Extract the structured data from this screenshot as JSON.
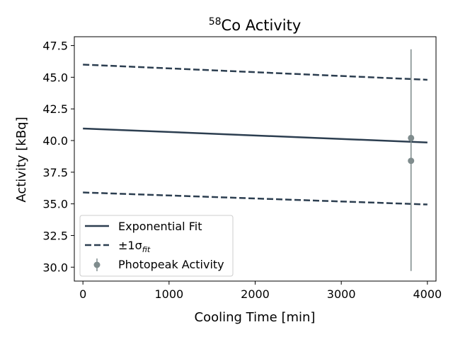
{
  "chart_data": {
    "type": "line",
    "title": "Co Activity",
    "title_superscript": "58",
    "xlabel": "Cooling Time [min]",
    "ylabel": "Activity [kBq]",
    "xlim": [
      -100,
      4100
    ],
    "ylim": [
      28.9,
      48.2
    ],
    "xticks": [
      0,
      1000,
      2000,
      3000,
      4000
    ],
    "yticks": [
      30.0,
      32.5,
      35.0,
      37.5,
      40.0,
      42.5,
      45.0,
      47.5
    ],
    "grid": false,
    "legend_position": "lower-left",
    "colors": {
      "fit": "#2c3e50",
      "points": "#7f8c8d"
    },
    "series": [
      {
        "name": "Exponential Fit",
        "style": "solid",
        "x": [
          0,
          4000
        ],
        "y": [
          40.95,
          39.85
        ]
      },
      {
        "name": "±1σ",
        "name_subscript": "fit",
        "style": "dashed",
        "x": [
          0,
          4000
        ],
        "y": [
          46.0,
          44.8
        ]
      },
      {
        "name": "",
        "style": "dashed",
        "x": [
          0,
          4000
        ],
        "y": [
          35.9,
          34.95
        ]
      },
      {
        "name": "Photopeak Activity",
        "style": "errorbar",
        "points": [
          {
            "x": 3810,
            "y": 40.2,
            "yerr_low": 29.7,
            "yerr_high": 47.2
          },
          {
            "x": 3810,
            "y": 38.4,
            "yerr_low": 29.7,
            "yerr_high": 47.2
          }
        ]
      }
    ]
  }
}
